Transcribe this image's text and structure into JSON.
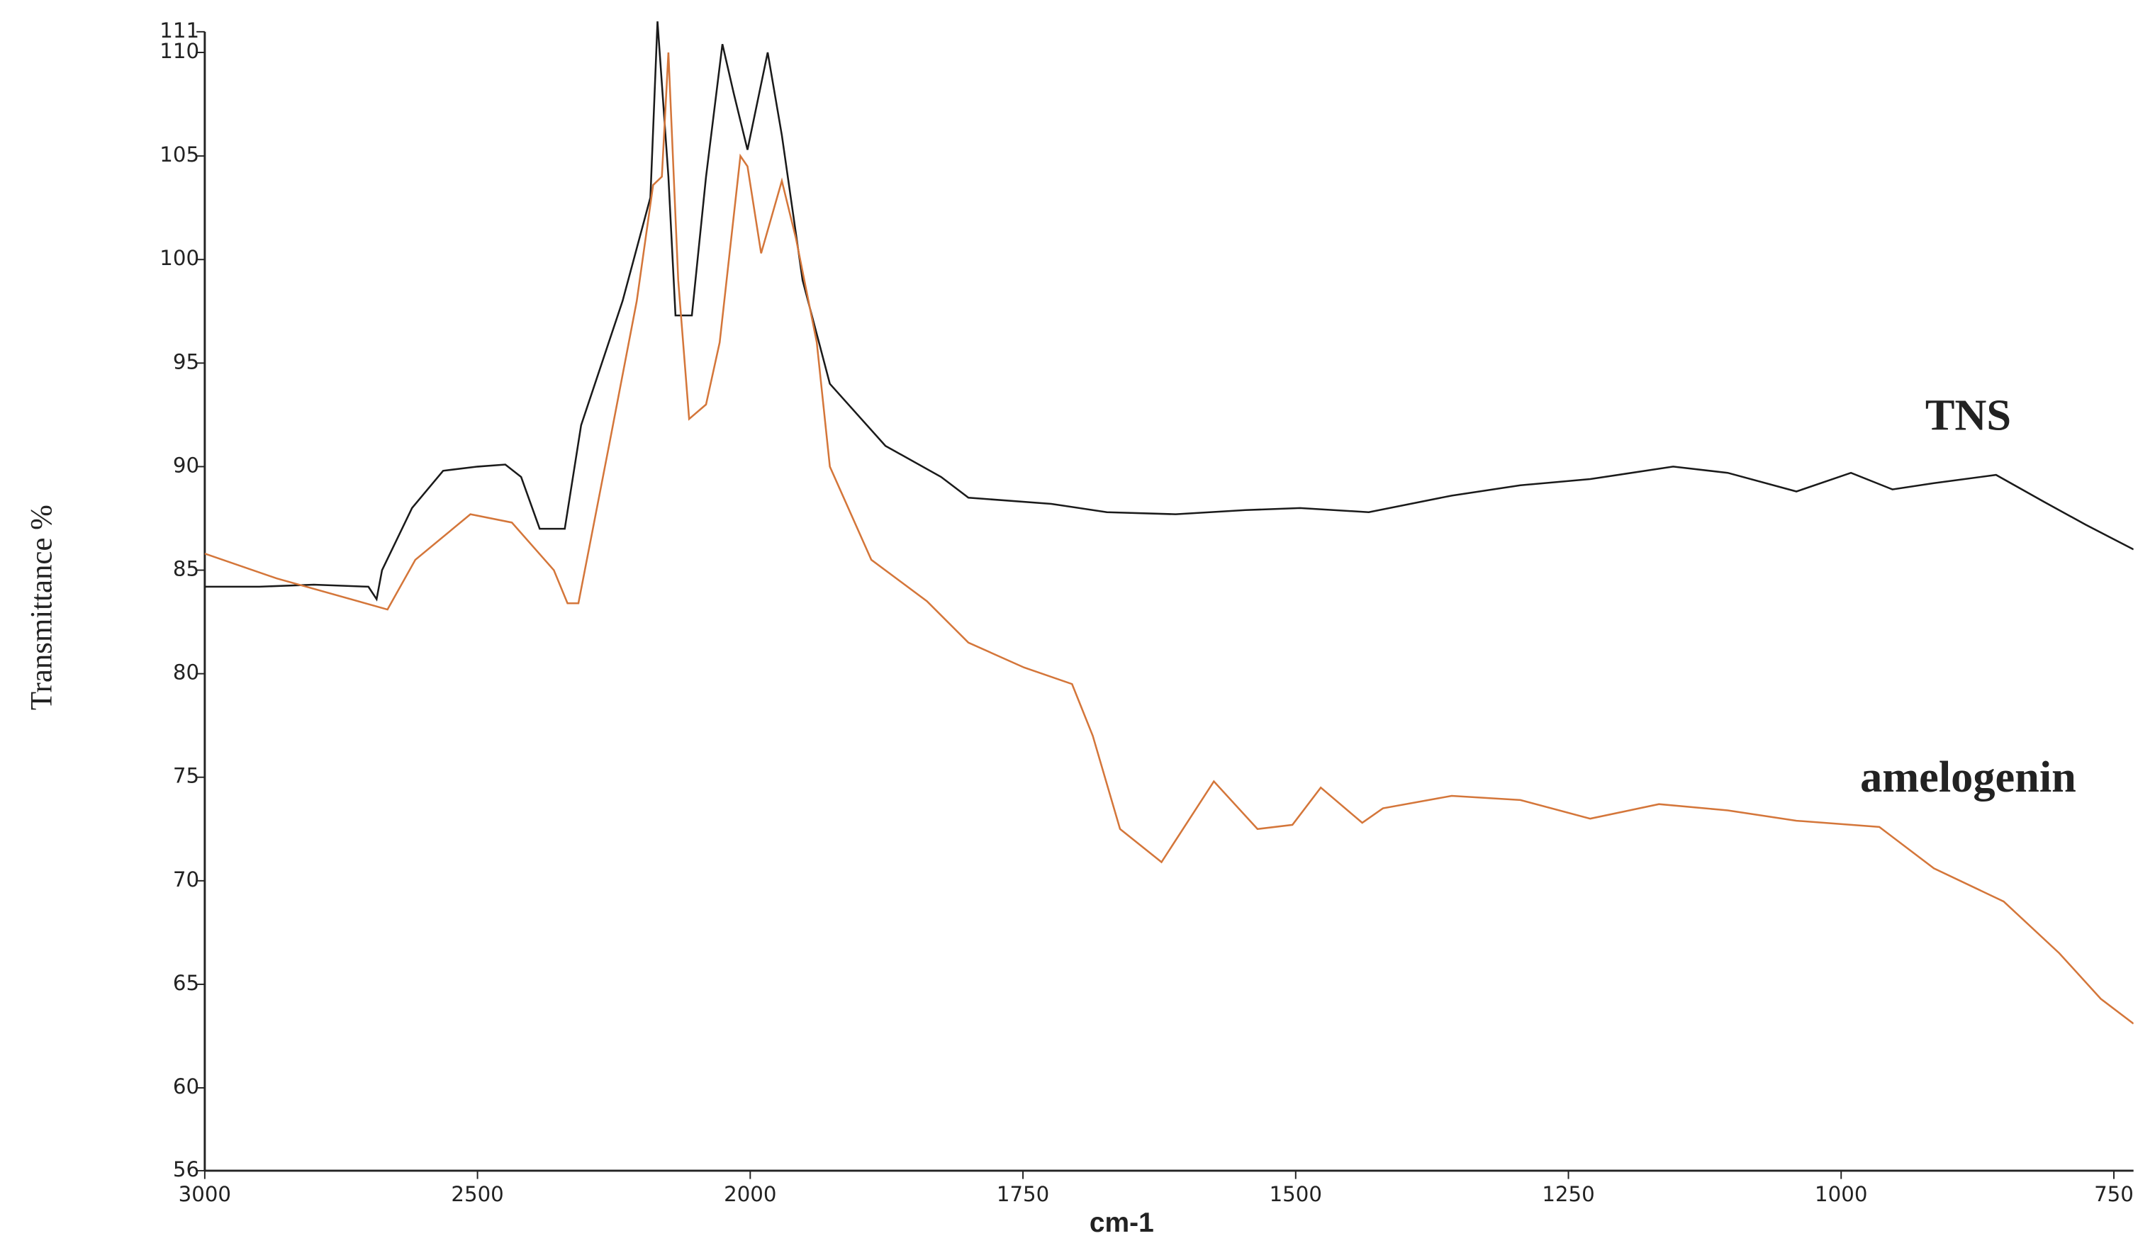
{
  "chart_data": {
    "type": "line",
    "xlabel": "cm-1",
    "ylabel": "Transmittance %",
    "annotations": [
      "TNS",
      "amelogenin"
    ],
    "xlim": [
      3000,
      732
    ],
    "xticks": [
      3000,
      2500,
      2000,
      1750,
      1500,
      1250,
      1000,
      750
    ],
    "ylim": [
      56,
      111
    ],
    "yticks": [
      56,
      60,
      65,
      70,
      75,
      80,
      85,
      90,
      95,
      100,
      105,
      110,
      111
    ],
    "series": [
      {
        "name": "TNS",
        "color": "#1a1a1a",
        "x": [
          3000,
          2900,
          2800,
          2700,
          2685,
          2675,
          2620,
          2563,
          2500,
          2449,
          2420,
          2386,
          2340,
          2310,
          2234,
          2183,
          2170,
          2150,
          2137,
          2107,
          2081,
          2051,
          2030,
          2005,
          1984,
          1971,
          1952,
          1927,
          1876,
          1825,
          1800,
          1724,
          1673,
          1610,
          1546,
          1496,
          1433,
          1357,
          1294,
          1230,
          1154,
          1104,
          1041,
          991,
          953,
          915,
          858,
          814,
          776,
          732
        ],
        "values": [
          84.2,
          84.2,
          84.3,
          84.2,
          83.6,
          85,
          88,
          89.8,
          90,
          90.1,
          89.5,
          87,
          87,
          92,
          98,
          103,
          111.5,
          104,
          97.3,
          97.3,
          104,
          110.4,
          108,
          105.3,
          110,
          106,
          99,
          94,
          91,
          89.5,
          88.5,
          88.2,
          87.8,
          87.7,
          87.9,
          88,
          87.8,
          88.6,
          89.1,
          89.4,
          90,
          89.7,
          88.8,
          89.7,
          88.9,
          89.2,
          89.6,
          88.3,
          87.2,
          86
        ]
      },
      {
        "name": "amelogenin",
        "color": "#d4763a",
        "x": [
          3000,
          2868,
          2665,
          2614,
          2513,
          2437,
          2360,
          2335,
          2315,
          2259,
          2208,
          2178,
          2162,
          2150,
          2132,
          2112,
          2081,
          2056,
          2018,
          2005,
          1990,
          1971,
          1958,
          1939,
          1927,
          1889,
          1838,
          1800,
          1749,
          1705,
          1686,
          1661,
          1623,
          1575,
          1535,
          1503,
          1477,
          1439,
          1420,
          1357,
          1294,
          1230,
          1167,
          1104,
          1041,
          965,
          915,
          851,
          800,
          762,
          732
        ],
        "values": [
          85.8,
          84.6,
          83.1,
          85.5,
          87.7,
          87.3,
          85,
          83.4,
          83.4,
          91,
          98,
          103.6,
          104,
          110,
          99,
          92.3,
          93,
          96,
          105,
          104.5,
          100.3,
          103.8,
          101,
          96,
          90,
          85.5,
          83.5,
          81.5,
          80.3,
          79.5,
          77,
          72.5,
          70.9,
          74.8,
          72.5,
          72.7,
          74.5,
          72.8,
          73.5,
          74.1,
          73.9,
          73,
          73.7,
          73.4,
          72.9,
          72.6,
          70.6,
          69,
          66.5,
          64.3,
          63.1
        ]
      }
    ]
  }
}
